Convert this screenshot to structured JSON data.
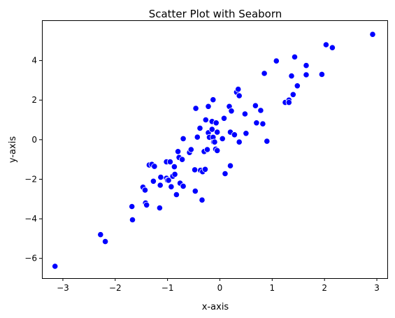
{
  "chart_data": {
    "type": "scatter",
    "title": "Scatter Plot with Seaborn",
    "xlabel": "x-axis",
    "ylabel": "y-axis",
    "xlim": [
      -3.4,
      3.2
    ],
    "ylim": [
      -7.0,
      6.0
    ],
    "xticks": [
      -3,
      -2,
      -1,
      0,
      1,
      2,
      3
    ],
    "yticks": [
      -6,
      -4,
      -2,
      0,
      2,
      4
    ],
    "xtick_labels": [
      "−3",
      "−2",
      "−1",
      "0",
      "1",
      "2",
      "3"
    ],
    "ytick_labels": [
      "−6",
      "−4",
      "−2",
      "0",
      "2",
      "4"
    ],
    "grid": false,
    "legend": "none",
    "marker_color": "#0000ff",
    "marker_edge_color": "#ffffff",
    "series": [
      {
        "points": [
          [
            -3.15,
            -6.4
          ],
          [
            -2.28,
            -4.8
          ],
          [
            -2.19,
            -5.15
          ],
          [
            -1.68,
            -3.38
          ],
          [
            -1.67,
            -4.05
          ],
          [
            -1.47,
            -2.4
          ],
          [
            -1.43,
            -2.55
          ],
          [
            -1.42,
            -3.2
          ],
          [
            -1.4,
            -3.3
          ],
          [
            -1.35,
            -1.28
          ],
          [
            -1.3,
            -1.25
          ],
          [
            -1.27,
            -2.1
          ],
          [
            -1.25,
            -1.35
          ],
          [
            -1.15,
            -3.45
          ],
          [
            -1.14,
            -2.3
          ],
          [
            -1.13,
            -1.9
          ],
          [
            -1.02,
            -1.95
          ],
          [
            -1.02,
            -1.12
          ],
          [
            -1.0,
            -2.05
          ],
          [
            -0.98,
            -2.05
          ],
          [
            -0.95,
            -1.12
          ],
          [
            -0.93,
            -2.38
          ],
          [
            -0.9,
            -1.85
          ],
          [
            -0.87,
            -1.37
          ],
          [
            -0.86,
            -1.75
          ],
          [
            -0.83,
            -2.78
          ],
          [
            -0.8,
            -0.6
          ],
          [
            -0.78,
            -0.9
          ],
          [
            -0.76,
            -2.2
          ],
          [
            -0.72,
            -1.0
          ],
          [
            -0.7,
            -2.35
          ],
          [
            -0.7,
            0.05
          ],
          [
            -0.58,
            -0.65
          ],
          [
            -0.55,
            -0.5
          ],
          [
            -0.48,
            -1.52
          ],
          [
            -0.47,
            -2.6
          ],
          [
            -0.46,
            1.58
          ],
          [
            -0.43,
            0.13
          ],
          [
            -0.38,
            0.58
          ],
          [
            -0.37,
            -1.55
          ],
          [
            -0.34,
            -3.05
          ],
          [
            -0.33,
            -1.62
          ],
          [
            -0.3,
            -0.6
          ],
          [
            -0.28,
            -1.5
          ],
          [
            -0.27,
            1.0
          ],
          [
            -0.24,
            -0.5
          ],
          [
            -0.22,
            1.68
          ],
          [
            -0.22,
            0.35
          ],
          [
            -0.2,
            0.12
          ],
          [
            -0.15,
            0.92
          ],
          [
            -0.15,
            0.52
          ],
          [
            -0.13,
            0.12
          ],
          [
            -0.13,
            2.02
          ],
          [
            -0.12,
            -0.12
          ],
          [
            -0.1,
            -0.12
          ],
          [
            -0.08,
            -0.48
          ],
          [
            -0.07,
            0.85
          ],
          [
            -0.05,
            0.38
          ],
          [
            -0.05,
            -0.55
          ],
          [
            0.05,
            0.05
          ],
          [
            0.08,
            1.08
          ],
          [
            0.1,
            -1.72
          ],
          [
            0.18,
            1.68
          ],
          [
            0.2,
            0.38
          ],
          [
            0.2,
            -1.32
          ],
          [
            0.22,
            1.45
          ],
          [
            0.28,
            0.25
          ],
          [
            0.32,
            2.4
          ],
          [
            0.35,
            2.55
          ],
          [
            0.37,
            2.22
          ],
          [
            0.37,
            -0.12
          ],
          [
            0.48,
            1.3
          ],
          [
            0.5,
            0.32
          ],
          [
            0.68,
            1.72
          ],
          [
            0.7,
            0.85
          ],
          [
            0.78,
            1.48
          ],
          [
            0.82,
            0.8
          ],
          [
            0.85,
            3.35
          ],
          [
            0.9,
            -0.08
          ],
          [
            1.08,
            3.98
          ],
          [
            1.25,
            1.88
          ],
          [
            1.32,
            2.0
          ],
          [
            1.32,
            1.88
          ],
          [
            1.37,
            3.22
          ],
          [
            1.4,
            2.28
          ],
          [
            1.43,
            4.18
          ],
          [
            1.48,
            2.72
          ],
          [
            1.65,
            3.75
          ],
          [
            1.65,
            3.28
          ],
          [
            1.95,
            3.3
          ],
          [
            2.03,
            4.8
          ],
          [
            2.15,
            4.65
          ],
          [
            2.92,
            5.32
          ]
        ]
      }
    ]
  }
}
